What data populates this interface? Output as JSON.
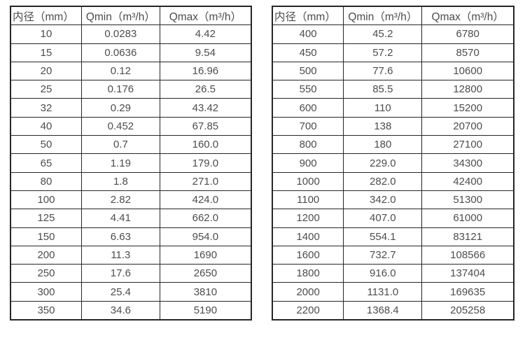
{
  "colors": {
    "background": "#ffffff",
    "border": "#262626",
    "text": "#4d4d4d"
  },
  "tables": [
    {
      "name": "flow-spec-small-diameters",
      "headers": [
        "内径（mm）",
        "Qmin（m³/h）",
        "Qmax（m³/h）"
      ],
      "rows": [
        [
          "10",
          "0.0283",
          "4.42"
        ],
        [
          "15",
          "0.0636",
          "9.54"
        ],
        [
          "20",
          "0.12",
          "16.96"
        ],
        [
          "25",
          "0.176",
          "26.5"
        ],
        [
          "32",
          "0.29",
          "43.42"
        ],
        [
          "40",
          "0.452",
          "67.85"
        ],
        [
          "50",
          "0.7",
          "160.0"
        ],
        [
          "65",
          "1.19",
          "179.0"
        ],
        [
          "80",
          "1.8",
          "271.0"
        ],
        [
          "100",
          "2.82",
          "424.0"
        ],
        [
          "125",
          "4.41",
          "662.0"
        ],
        [
          "150",
          "6.63",
          "954.0"
        ],
        [
          "200",
          "11.3",
          "1690"
        ],
        [
          "250",
          "17.6",
          "2650"
        ],
        [
          "300",
          "25.4",
          "3810"
        ],
        [
          "350",
          "34.6",
          "5190"
        ]
      ]
    },
    {
      "name": "flow-spec-large-diameters",
      "headers": [
        "内径（mm）",
        "Qmin（m³/h）",
        "Qmax（m³/h）"
      ],
      "rows": [
        [
          "400",
          "45.2",
          "6780"
        ],
        [
          "450",
          "57.2",
          "8570"
        ],
        [
          "500",
          "77.6",
          "10600"
        ],
        [
          "550",
          "85.5",
          "12800"
        ],
        [
          "600",
          "110",
          "15200"
        ],
        [
          "700",
          "138",
          "20700"
        ],
        [
          "800",
          "180",
          "27100"
        ],
        [
          "900",
          "229.0",
          "34300"
        ],
        [
          "1000",
          "282.0",
          "42400"
        ],
        [
          "1100",
          "342.0",
          "51300"
        ],
        [
          "1200",
          "407.0",
          "61000"
        ],
        [
          "1400",
          "554.1",
          "83121"
        ],
        [
          "1600",
          "732.7",
          "108566"
        ],
        [
          "1800",
          "916.0",
          "137404"
        ],
        [
          "2000",
          "1131.0",
          "169635"
        ],
        [
          "2200",
          "1368.4",
          "205258"
        ]
      ]
    }
  ]
}
